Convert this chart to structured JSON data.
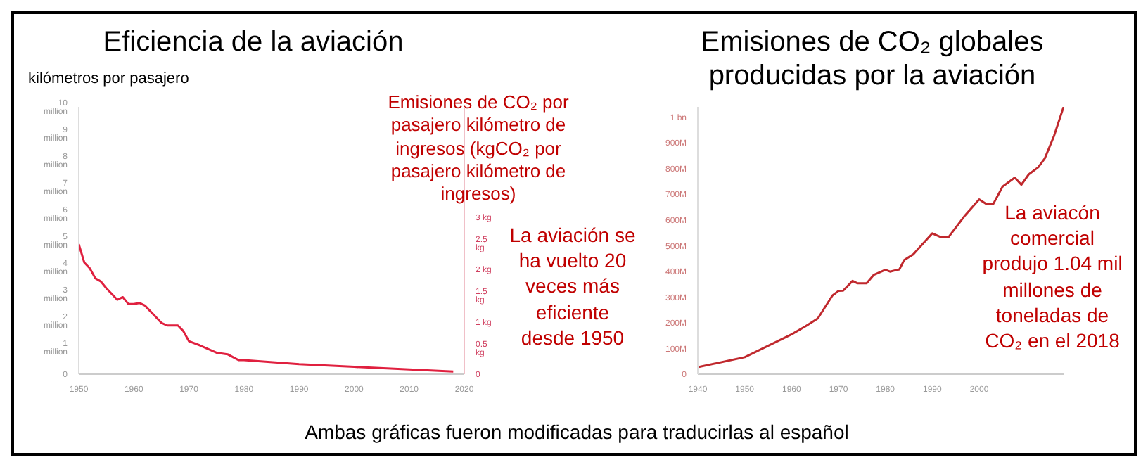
{
  "chart_data": [
    {
      "type": "line",
      "title": "Eficiencia de la aviación",
      "ylabel": "kilómetros por pasajero",
      "y2label": "Emisiones de CO₂ por pasajero kilómetro de ingresos (kgCO₂ por pasajero kilómetro de ingresos)",
      "annotations": [
        "La aviación se ha vuelto 20 veces más eficiente desde 1950",
        "Ambas gráficas fueron modificadas para traducirlas al español"
      ],
      "x": [
        1950,
        1951,
        1952,
        1953,
        1954,
        1955,
        1957,
        1958,
        1959,
        1960,
        1961,
        1962,
        1964,
        1965,
        1966,
        1968,
        1969,
        1970,
        1972,
        1975,
        1977,
        1979,
        1980,
        1990,
        2000,
        2010,
        2018
      ],
      "series": [
        {
          "color": "#e0203f",
          "axis": "y2",
          "values": [
            2.48,
            2.13,
            2.02,
            1.83,
            1.77,
            1.64,
            1.42,
            1.47,
            1.34,
            1.34,
            1.36,
            1.31,
            1.09,
            0.98,
            0.93,
            0.93,
            0.82,
            0.63,
            0.55,
            0.41,
            0.38,
            0.27,
            0.27,
            0.19,
            0.14,
            0.09,
            0.05
          ]
        }
      ],
      "xlim": [
        1950,
        2020
      ],
      "xticks": [
        1950,
        1960,
        1970,
        1980,
        1990,
        2000,
        2010,
        2020
      ],
      "ylim": [
        0,
        10
      ],
      "yticks": [
        0,
        {
          "value": 1,
          "label": "1 million"
        },
        {
          "value": 2,
          "label": "2 million"
        },
        {
          "value": 3,
          "label": "3 million"
        },
        {
          "value": 4,
          "label": "4 million"
        },
        {
          "value": 5,
          "label": "5 million"
        },
        {
          "value": 6,
          "label": "6 million"
        },
        {
          "value": 7,
          "label": "7 million"
        },
        {
          "value": 8,
          "label": "8 million"
        },
        {
          "value": 9,
          "label": "9 million"
        },
        {
          "value": 10,
          "label": "10 million"
        }
      ],
      "y2lim": [
        0,
        5.1
      ],
      "y2ticks": [
        0,
        {
          "value": 0.5,
          "label": "0.5 kg"
        },
        {
          "value": 1,
          "label": "1 kg"
        },
        {
          "value": 1.5,
          "label": "1.5 kg"
        },
        {
          "value": 2,
          "label": "2 kg"
        },
        {
          "value": 2.5,
          "label": "2.5 kg"
        },
        {
          "value": 3,
          "label": "3 kg"
        }
      ]
    },
    {
      "type": "line",
      "title": "Emisiones de CO₂ globales producidas por la aviación",
      "annotations": [
        "La aviacón comercial produjo 1.04 mil millones de toneladas de CO₂ en el 2018"
      ],
      "x": [
        1940,
        1950,
        1960,
        1963,
        1965.6,
        1968.7,
        1970,
        1971,
        1973,
        1974,
        1976,
        1977.5,
        1980,
        1981,
        1983,
        1984,
        1986,
        1990,
        1992,
        1993.5,
        1997,
        2000,
        2001.5,
        2003,
        2005,
        2007.6,
        2009,
        2010.6,
        2012.6,
        2014,
        2016,
        2018
      ],
      "series": [
        {
          "color": "#c0282d",
          "values": [
            27000000,
            66000000,
            155000000,
            187000000,
            217000000,
            306000000,
            324000000,
            325000000,
            363000000,
            354000000,
            354000000,
            386000000,
            406000000,
            399000000,
            408000000,
            444000000,
            467000000,
            548000000,
            532000000,
            534000000,
            618000000,
            680000000,
            662000000,
            662000000,
            730000000,
            765000000,
            737000000,
            778000000,
            805000000,
            840000000,
            929000000,
            1040000000
          ]
        }
      ],
      "xlim": [
        1940,
        2018
      ],
      "xticks": [
        1940,
        1950,
        1960,
        1970,
        1980,
        1990,
        2000
      ],
      "ylim": [
        0,
        1040000000
      ],
      "yticks": [
        0,
        {
          "value": 100000000,
          "label": "100M"
        },
        {
          "value": 200000000,
          "label": "200M"
        },
        {
          "value": 300000000,
          "label": "300M"
        },
        {
          "value": 400000000,
          "label": "400M"
        },
        {
          "value": 500000000,
          "label": "500M"
        },
        {
          "value": 600000000,
          "label": "600M"
        },
        {
          "value": 700000000,
          "label": "700M"
        },
        {
          "value": 800000000,
          "label": "800M"
        },
        {
          "value": 900000000,
          "label": "900M"
        },
        {
          "value": 1000000000,
          "label": "1 bn"
        }
      ]
    }
  ]
}
